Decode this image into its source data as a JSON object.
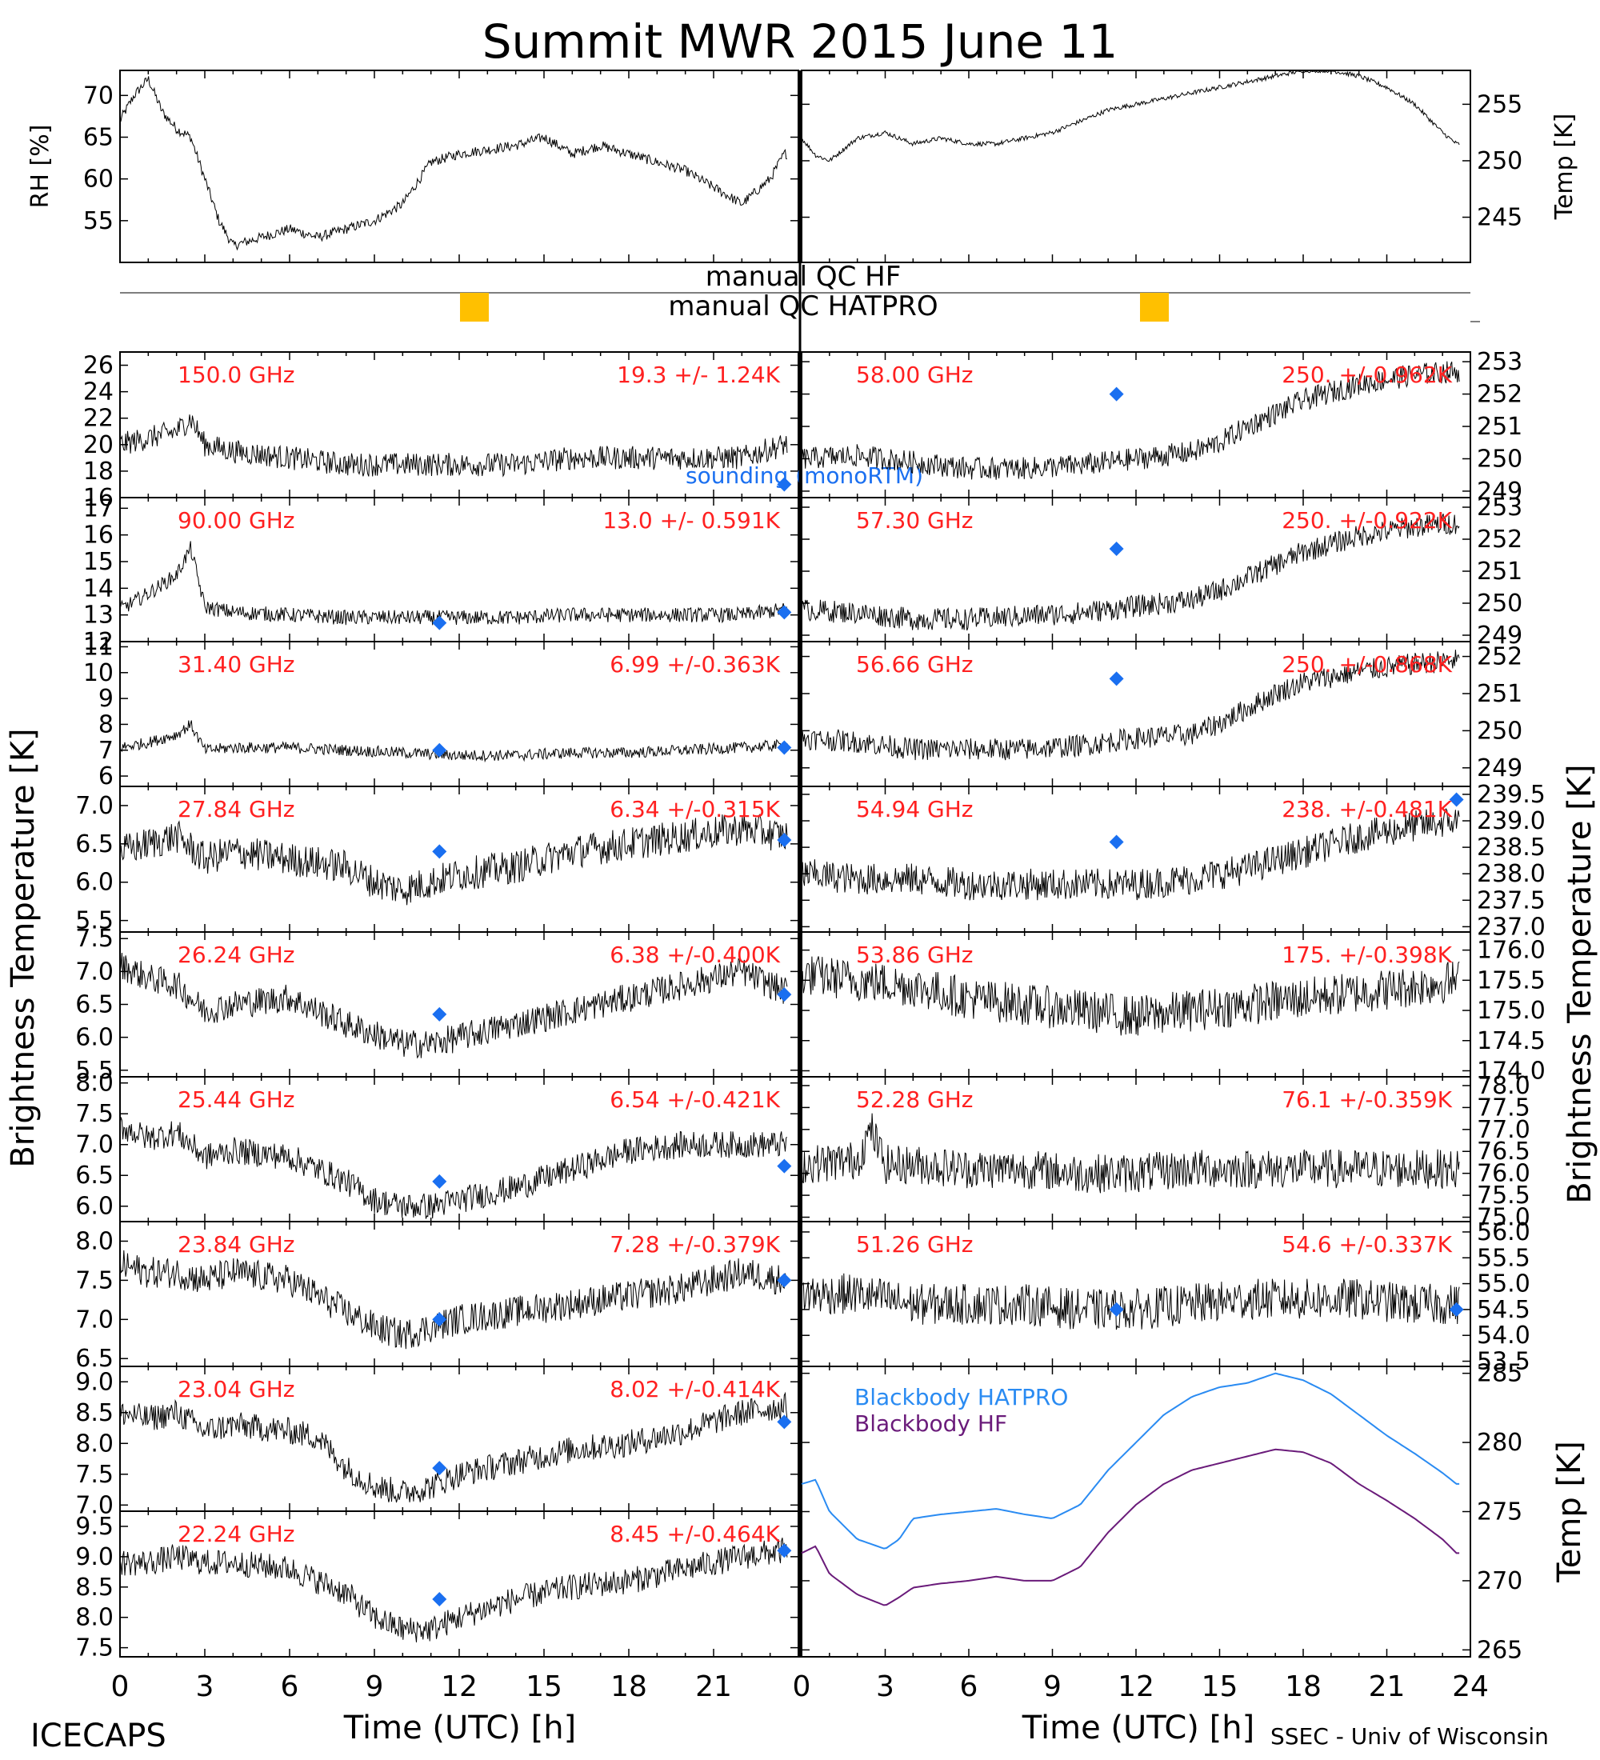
{
  "title": "Summit MWR 2015 June 11",
  "footer": {
    "left": "ICECAPS",
    "right": "SSEC - Univ of Wisconsin"
  },
  "axes": {
    "xlabel": "Time (UTC) [h]",
    "left_ylabel": "Brightness Temperature [K]",
    "right_ylabel": "Brightness Temperature [K]",
    "x_ticks_left": [
      "0",
      "3",
      "6",
      "9",
      "12",
      "15",
      "18",
      "21"
    ],
    "x_ticks_right": [
      "0",
      "3",
      "6",
      "9",
      "12",
      "15",
      "18",
      "21",
      "24"
    ]
  },
  "qc": {
    "label_hf": "manual QC HF",
    "label_hatpro": "manual QC HATPRO",
    "flag_color": "#FFC000"
  },
  "legend_sounding": "sounding (monoRTM)",
  "colors": {
    "text_red": "#FF2020",
    "sounding": "#1A6FF0",
    "bb_hatpro": "#2A8BF2",
    "bb_hf": "#6A1B7A",
    "data": "#000000"
  },
  "chart_data": [
    {
      "type": "line",
      "id": "rh",
      "ylabel": "RH [%]",
      "yticks": [
        "55",
        "60",
        "65",
        "70"
      ],
      "ylim": [
        50,
        73
      ],
      "x": [
        0,
        0.5,
        1,
        1.5,
        2,
        2.5,
        3,
        3.5,
        4,
        5,
        6,
        7,
        8,
        9,
        10,
        11,
        12,
        13,
        14,
        15,
        16,
        17,
        18,
        19,
        20,
        21,
        22,
        23,
        23.5
      ],
      "values": [
        67,
        70,
        72,
        68,
        66,
        65,
        60,
        55,
        52,
        53,
        54,
        53,
        54,
        55,
        57,
        62,
        63,
        63.5,
        64,
        65,
        63,
        64,
        63,
        62,
        61,
        59,
        57,
        60,
        63
      ]
    },
    {
      "type": "line",
      "id": "temp",
      "ylabel": "Temp [K]",
      "yticks": [
        "245",
        "250",
        "255"
      ],
      "ylim": [
        241,
        258
      ],
      "x": [
        0,
        0.5,
        1,
        1.5,
        2,
        3,
        4,
        5,
        6,
        7,
        8,
        9,
        10,
        11,
        12,
        13,
        14,
        15,
        16,
        17,
        18,
        19,
        20,
        21,
        22,
        23,
        23.5
      ],
      "values": [
        252,
        250.5,
        250,
        251,
        252,
        252.5,
        251.5,
        252,
        251.5,
        251.5,
        252,
        252.5,
        253.5,
        254.5,
        255,
        255.5,
        256,
        256.5,
        257,
        257.5,
        258,
        258,
        257.5,
        256.5,
        255,
        252.5,
        251.5
      ]
    },
    {
      "type": "line",
      "channel": "150.0 GHz",
      "stats": "19.3 +/-  1.24K",
      "side": "left",
      "yticks": [
        "16",
        "18",
        "20",
        "22",
        "24",
        "26"
      ],
      "ylim": [
        16,
        27
      ],
      "x": [
        0,
        1,
        2,
        2.5,
        3,
        4,
        6,
        8,
        10,
        12,
        14,
        16,
        18,
        20,
        22,
        23.5
      ],
      "values": [
        20,
        20.5,
        21,
        22,
        20,
        19.5,
        19,
        18.5,
        18.5,
        18.5,
        18.5,
        19,
        19,
        19,
        19,
        20
      ],
      "noise": 0.9,
      "sounding": [
        [
          23.5,
          17
        ]
      ]
    },
    {
      "type": "line",
      "channel": "90.00 GHz",
      "stats": "13.0 +/- 0.591K",
      "side": "left",
      "yticks": [
        "12",
        "13",
        "14",
        "15",
        "16",
        "17"
      ],
      "ylim": [
        12,
        17.4
      ],
      "x": [
        0,
        1,
        2,
        2.5,
        3,
        4,
        6,
        8,
        10,
        12,
        14,
        16,
        18,
        20,
        22,
        23.5
      ],
      "values": [
        13.2,
        13.8,
        14.5,
        15.5,
        13.3,
        13.1,
        13,
        12.9,
        12.9,
        12.9,
        12.9,
        13,
        13,
        13,
        13,
        13.2
      ],
      "noise": 0.28,
      "sounding": [
        [
          11.3,
          12.7
        ],
        [
          23.5,
          13.1
        ]
      ]
    },
    {
      "type": "line",
      "channel": "31.40 GHz",
      "stats": "6.99 +/-0.363K",
      "side": "left",
      "yticks": [
        "6",
        "7",
        "8",
        "9",
        "10",
        "11"
      ],
      "ylim": [
        5.6,
        11.2
      ],
      "x": [
        0,
        1,
        2,
        2.5,
        3,
        4,
        6,
        8,
        10,
        12,
        14,
        16,
        18,
        20,
        22,
        23.5
      ],
      "values": [
        7.1,
        7.3,
        7.6,
        8,
        7,
        7.1,
        7.1,
        7,
        6.9,
        6.8,
        6.8,
        6.9,
        6.9,
        7,
        7.1,
        7.2
      ],
      "noise": 0.22,
      "sounding": [
        [
          11.3,
          7.0
        ],
        [
          23.5,
          7.1
        ]
      ]
    },
    {
      "type": "line",
      "channel": "27.84 GHz",
      "stats": "6.34 +/-0.315K",
      "side": "left",
      "yticks": [
        "5.5",
        "6.0",
        "6.5",
        "7.0"
      ],
      "ylim": [
        5.35,
        7.25
      ],
      "x": [
        0,
        1,
        2,
        3,
        4,
        6,
        8,
        9,
        10,
        11,
        12,
        14,
        16,
        18,
        20,
        22,
        23.5
      ],
      "values": [
        6.4,
        6.5,
        6.6,
        6.3,
        6.4,
        6.3,
        6.2,
        6.0,
        5.9,
        6.0,
        6.1,
        6.2,
        6.4,
        6.5,
        6.6,
        6.7,
        6.6
      ],
      "noise": 0.22,
      "sounding": [
        [
          11.3,
          6.4
        ],
        [
          23.5,
          6.55
        ]
      ]
    },
    {
      "type": "line",
      "channel": "26.24 GHz",
      "stats": "6.38 +/-0.400K",
      "side": "left",
      "yticks": [
        "5.5",
        "6.0",
        "6.5",
        "7.0",
        "7.5"
      ],
      "ylim": [
        5.4,
        7.6
      ],
      "x": [
        0,
        1,
        2,
        3,
        4,
        6,
        8,
        10,
        11,
        12,
        14,
        16,
        18,
        20,
        22,
        23.5
      ],
      "values": [
        7.1,
        6.9,
        6.8,
        6.4,
        6.5,
        6.6,
        6.2,
        5.9,
        5.9,
        6.0,
        6.2,
        6.4,
        6.6,
        6.8,
        7.0,
        6.7
      ],
      "noise": 0.22,
      "sounding": [
        [
          11.3,
          6.35
        ],
        [
          23.5,
          6.65
        ]
      ]
    },
    {
      "type": "line",
      "channel": "25.44 GHz",
      "stats": "6.54 +/-0.421K",
      "side": "left",
      "yticks": [
        "6.0",
        "6.5",
        "7.0",
        "7.5",
        "8.0"
      ],
      "ylim": [
        5.75,
        8.1
      ],
      "x": [
        0,
        1,
        2,
        3,
        4,
        6,
        8,
        9,
        10,
        11,
        12,
        14,
        16,
        18,
        20,
        22,
        23.5
      ],
      "values": [
        7.3,
        7.1,
        7.2,
        6.8,
        6.9,
        6.8,
        6.4,
        6.1,
        6.0,
        6.0,
        6.1,
        6.3,
        6.6,
        6.9,
        7.0,
        7.0,
        7.0
      ],
      "noise": 0.22,
      "sounding": [
        [
          11.3,
          6.4
        ],
        [
          23.5,
          6.65
        ]
      ]
    },
    {
      "type": "line",
      "channel": "23.84 GHz",
      "stats": "7.28 +/-0.379K",
      "side": "left",
      "yticks": [
        "6.5",
        "7.0",
        "7.5",
        "8.0"
      ],
      "ylim": [
        6.4,
        8.25
      ],
      "x": [
        0,
        1,
        2,
        3,
        4,
        6,
        8,
        9,
        10,
        11,
        12,
        14,
        16,
        18,
        20,
        22,
        23.5
      ],
      "values": [
        7.7,
        7.6,
        7.6,
        7.5,
        7.6,
        7.5,
        7.1,
        6.9,
        6.8,
        6.9,
        7.0,
        7.1,
        7.2,
        7.3,
        7.4,
        7.6,
        7.5
      ],
      "noise": 0.2,
      "sounding": [
        [
          11.3,
          7.0
        ],
        [
          23.5,
          7.5
        ]
      ]
    },
    {
      "type": "line",
      "channel": "23.04 GHz",
      "stats": "8.02 +/-0.414K",
      "side": "left",
      "yticks": [
        "7.0",
        "7.5",
        "8.0",
        "8.5",
        "9.0"
      ],
      "ylim": [
        6.9,
        9.25
      ],
      "x": [
        0,
        1,
        2,
        3,
        4,
        6,
        7,
        8,
        9,
        10,
        11,
        12,
        14,
        16,
        18,
        20,
        22,
        23.5
      ],
      "values": [
        8.5,
        8.4,
        8.5,
        8.2,
        8.3,
        8.2,
        8.1,
        7.6,
        7.3,
        7.2,
        7.3,
        7.5,
        7.7,
        7.9,
        8.0,
        8.2,
        8.5,
        8.6
      ],
      "noise": 0.22,
      "sounding": [
        [
          11.3,
          7.6
        ],
        [
          23.5,
          8.35
        ]
      ]
    },
    {
      "type": "line",
      "channel": "22.24 GHz",
      "stats": "8.45 +/-0.464K",
      "side": "left",
      "yticks": [
        "7.5",
        "8.0",
        "8.5",
        "9.0",
        "9.5"
      ],
      "ylim": [
        7.35,
        9.75
      ],
      "x": [
        0,
        1,
        2,
        3,
        4,
        6,
        8,
        9,
        10,
        11,
        12,
        14,
        16,
        18,
        20,
        22,
        23.5
      ],
      "values": [
        8.9,
        8.9,
        9.0,
        8.9,
        8.9,
        8.8,
        8.4,
        8.0,
        7.8,
        7.8,
        8.0,
        8.3,
        8.5,
        8.6,
        8.8,
        9.0,
        9.1
      ],
      "noise": 0.22,
      "sounding": [
        [
          11.3,
          8.3
        ],
        [
          23.5,
          9.1
        ]
      ]
    },
    {
      "type": "line",
      "channel": "58.00 GHz",
      "stats": "250. +/-0.962K",
      "side": "right",
      "yticks": [
        "249",
        "250",
        "251",
        "252",
        "253"
      ],
      "ylim": [
        248.8,
        253.3
      ],
      "x": [
        0,
        2,
        4,
        6,
        8,
        10,
        12,
        14,
        15,
        16,
        17,
        18,
        20,
        22,
        23.5
      ],
      "values": [
        250,
        250.1,
        249.9,
        249.7,
        249.7,
        249.8,
        250,
        250.2,
        250.5,
        251,
        251.4,
        251.8,
        252.3,
        252.6,
        252.7
      ],
      "noise": 0.35,
      "sounding": [
        [
          11.3,
          252.0
        ]
      ]
    },
    {
      "type": "line",
      "channel": "57.30 GHz",
      "stats": "250. +/-0.922K",
      "side": "right",
      "yticks": [
        "249",
        "250",
        "251",
        "252",
        "253"
      ],
      "ylim": [
        248.8,
        253.3
      ],
      "x": [
        0,
        2,
        4,
        6,
        8,
        10,
        12,
        14,
        15,
        16,
        17,
        18,
        20,
        22,
        23.5
      ],
      "values": [
        249.8,
        249.7,
        249.5,
        249.5,
        249.6,
        249.7,
        249.9,
        250.1,
        250.4,
        250.8,
        251.2,
        251.6,
        252.1,
        252.4,
        252.5
      ],
      "noise": 0.35,
      "sounding": [
        [
          11.3,
          251.7
        ]
      ]
    },
    {
      "type": "line",
      "channel": "56.66 GHz",
      "stats": "250. +/-0.868K",
      "side": "right",
      "yticks": [
        "249",
        "250",
        "251",
        "252"
      ],
      "ylim": [
        248.5,
        252.4
      ],
      "x": [
        0,
        2,
        4,
        6,
        8,
        10,
        12,
        14,
        15,
        16,
        17,
        18,
        20,
        22,
        23.5
      ],
      "values": [
        249.8,
        249.7,
        249.5,
        249.5,
        249.5,
        249.6,
        249.8,
        249.9,
        250.2,
        250.6,
        251,
        251.3,
        251.6,
        251.8,
        251.9
      ],
      "noise": 0.3,
      "sounding": [
        [
          11.3,
          251.4
        ]
      ]
    },
    {
      "type": "line",
      "channel": "54.94 GHz",
      "stats": "238. +/-0.481K",
      "side": "right",
      "yticks": [
        "237.0",
        "237.5",
        "238.0",
        "238.5",
        "239.0",
        "239.5"
      ],
      "ylim": [
        236.9,
        239.65
      ],
      "x": [
        0,
        2,
        4,
        6,
        8,
        10,
        12,
        14,
        16,
        18,
        20,
        22,
        23.5
      ],
      "values": [
        238,
        237.9,
        237.9,
        237.8,
        237.8,
        237.8,
        237.8,
        237.9,
        238.1,
        238.4,
        238.7,
        238.9,
        239
      ],
      "noise": 0.3,
      "sounding": [
        [
          11.3,
          238.6
        ],
        [
          23.5,
          239.4
        ]
      ]
    },
    {
      "type": "line",
      "channel": "53.86 GHz",
      "stats": "175. +/-0.398K",
      "side": "right",
      "yticks": [
        "174.0",
        "174.5",
        "175.0",
        "175.5",
        "176.0"
      ],
      "ylim": [
        173.9,
        176.3
      ],
      "x": [
        0,
        2,
        4,
        6,
        8,
        10,
        12,
        14,
        16,
        18,
        20,
        22,
        23.5
      ],
      "values": [
        175.6,
        175.5,
        175.4,
        175.2,
        175.1,
        175.0,
        174.9,
        175.0,
        175.1,
        175.2,
        175.3,
        175.4,
        175.5
      ],
      "noise": 0.35,
      "sounding": []
    },
    {
      "type": "line",
      "channel": "52.28 GHz",
      "stats": "76.1 +/-0.359K",
      "side": "right",
      "yticks": [
        "75.0",
        "75.5",
        "76.0",
        "76.5",
        "77.0",
        "77.5",
        "78.0"
      ],
      "ylim": [
        74.9,
        78.2
      ],
      "x": [
        0,
        2,
        2.5,
        3,
        4,
        6,
        8,
        10,
        12,
        14,
        16,
        18,
        20,
        22,
        23.5
      ],
      "values": [
        76.2,
        76.3,
        77,
        76.2,
        76.2,
        76.1,
        76.1,
        76.0,
        76.0,
        76.1,
        76.1,
        76.1,
        76.1,
        76.1,
        76.1
      ],
      "noise": 0.45,
      "sounding": []
    },
    {
      "type": "line",
      "channel": "51.26 GHz",
      "stats": "54.6 +/-0.337K",
      "side": "right",
      "yticks": [
        "53.5",
        "54.0",
        "54.5",
        "55.0",
        "55.5",
        "56.0"
      ],
      "ylim": [
        53.4,
        56.2
      ],
      "x": [
        0,
        2,
        4,
        6,
        8,
        10,
        12,
        14,
        16,
        18,
        20,
        22,
        23.5
      ],
      "values": [
        54.8,
        54.8,
        54.6,
        54.6,
        54.6,
        54.5,
        54.5,
        54.6,
        54.7,
        54.7,
        54.7,
        54.6,
        54.6
      ],
      "noise": 0.4,
      "sounding": [
        [
          11.3,
          54.5
        ],
        [
          23.5,
          54.5
        ]
      ]
    },
    {
      "type": "line",
      "id": "blackbody",
      "ylabel": "Temp [K]",
      "yticks": [
        "265",
        "270",
        "275",
        "280",
        "285"
      ],
      "ylim": [
        264.5,
        285.5
      ],
      "series": [
        {
          "name": "Blackbody HATPRO",
          "color": "#2A8BF2",
          "x": [
            0,
            0.5,
            1,
            2,
            3,
            3.5,
            4,
            5,
            6,
            7,
            8,
            9,
            10,
            11,
            12,
            13,
            14,
            15,
            16,
            17,
            18,
            19,
            20,
            21,
            22,
            23,
            23.5
          ],
          "values": [
            277,
            277.3,
            275,
            273,
            272.3,
            273,
            274.5,
            274.8,
            275,
            275.2,
            274.8,
            274.5,
            275.5,
            278,
            280,
            282,
            283.3,
            284,
            284.3,
            285,
            284.5,
            283.5,
            282,
            280.5,
            279.2,
            277.8,
            277
          ]
        },
        {
          "name": "Blackbody HF",
          "color": "#6A1B7A",
          "x": [
            0,
            0.5,
            1,
            2,
            3,
            3.5,
            4,
            5,
            6,
            7,
            8,
            9,
            10,
            11,
            12,
            13,
            14,
            15,
            16,
            17,
            18,
            19,
            20,
            21,
            22,
            23,
            23.5
          ],
          "values": [
            272,
            272.5,
            270.5,
            269,
            268.2,
            268.8,
            269.5,
            269.8,
            270,
            270.3,
            270,
            270,
            271,
            273.5,
            275.5,
            277,
            278,
            278.5,
            279,
            279.5,
            279.3,
            278.5,
            277,
            275.8,
            274.5,
            273,
            272
          ]
        }
      ]
    }
  ]
}
